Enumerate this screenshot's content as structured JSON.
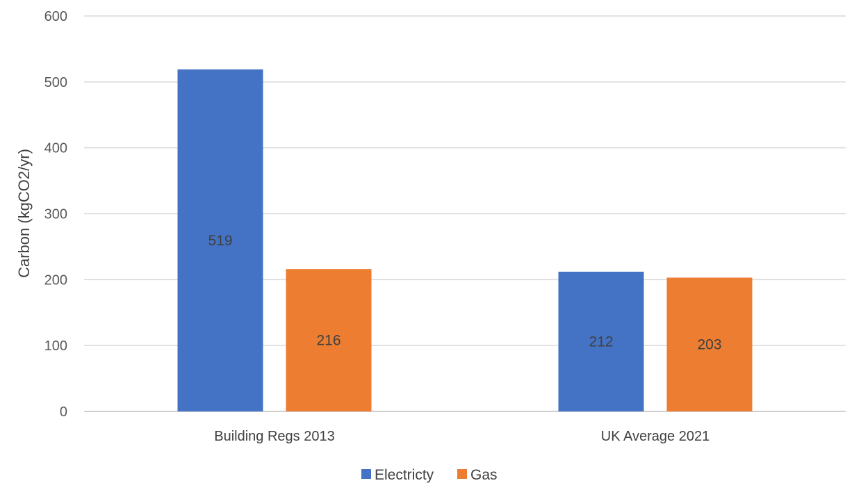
{
  "chart_data": {
    "type": "bar",
    "categories": [
      "Building Regs 2013",
      "UK Average 2021"
    ],
    "series": [
      {
        "name": "Electricty",
        "color": "#4472C4",
        "values": [
          519,
          212
        ]
      },
      {
        "name": "Gas",
        "color": "#ED7D31",
        "values": [
          216,
          203
        ]
      }
    ],
    "title": "",
    "xlabel": "",
    "ylabel": "Carbon (kgCO2/yr)",
    "ylim": [
      0,
      600
    ],
    "yticks": [
      0,
      100,
      200,
      300,
      400,
      500,
      600
    ],
    "data_labels": [
      "519",
      "212",
      "216",
      "203"
    ],
    "grid": true,
    "legend": "bottom"
  }
}
